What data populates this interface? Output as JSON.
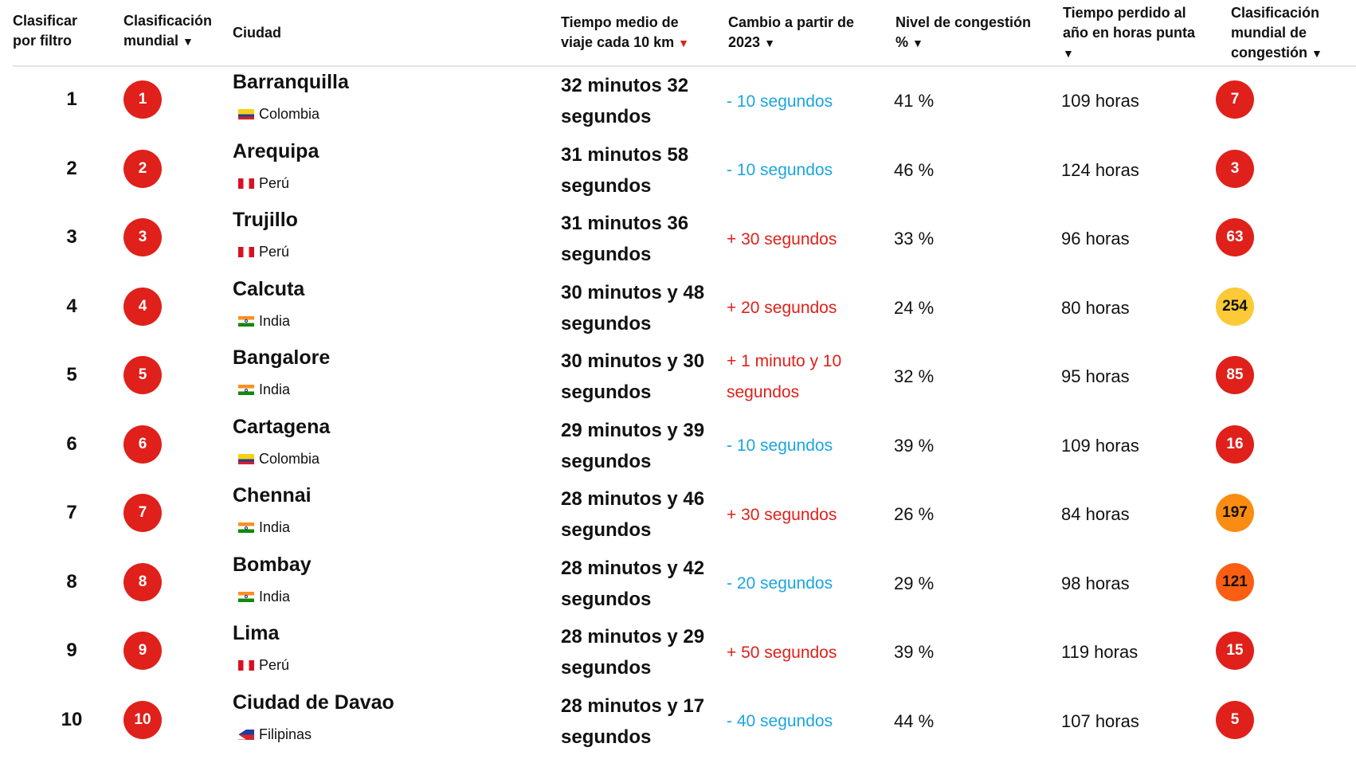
{
  "header": {
    "rank_filter": [
      "Clasificar",
      "por filtro"
    ],
    "world_rank": [
      "Clasificación",
      "mundial"
    ],
    "city": "Ciudad",
    "travel_time": [
      "Tiempo medio de",
      "viaje cada 10 km"
    ],
    "change": [
      "Cambio a partir de",
      "2023"
    ],
    "congestion_level": [
      "Nivel de congestión",
      "%"
    ],
    "time_lost": [
      "Tiempo perdido al",
      "año en horas punta"
    ],
    "congestion_rank": [
      "Clasificación",
      "mundial de",
      "congestión"
    ],
    "sort_arrow": "▼"
  },
  "rows": [
    {
      "rank": "1",
      "world_rank": "1",
      "city": "Barranquilla",
      "country": "Colombia",
      "flag": "colombia",
      "travel_time": "32 minutos 32 segundos",
      "change": "- 10 segundos",
      "trend": "neg",
      "congestion": "41 %",
      "hours": "109 horas",
      "congestion_rank": "7",
      "badge_color": "#e0201a",
      "badge_text_color": "#ffffff"
    },
    {
      "rank": "2",
      "world_rank": "2",
      "city": "Arequipa",
      "country": "Perú",
      "flag": "peru",
      "travel_time": "31 minutos 58 segundos",
      "change": "- 10 segundos",
      "trend": "neg",
      "congestion": "46 %",
      "hours": "124 horas",
      "congestion_rank": "3",
      "badge_color": "#e0201a",
      "badge_text_color": "#ffffff"
    },
    {
      "rank": "3",
      "world_rank": "3",
      "city": "Trujillo",
      "country": "Perú",
      "flag": "peru",
      "travel_time": "31 minutos 36 segundos",
      "change": "+ 30 segundos",
      "trend": "pos",
      "congestion": "33 %",
      "hours": "96 horas",
      "congestion_rank": "63",
      "badge_color": "#e0201a",
      "badge_text_color": "#ffffff"
    },
    {
      "rank": "4",
      "world_rank": "4",
      "city": "Calcuta",
      "country": "India",
      "flag": "india",
      "travel_time": "30 minutos y 48 segundos",
      "change": "+ 20 segundos",
      "trend": "pos",
      "congestion": "24 %",
      "hours": "80 horas",
      "congestion_rank": "254",
      "badge_color": "#fcc937",
      "badge_text_color": "#111111"
    },
    {
      "rank": "5",
      "world_rank": "5",
      "city": "Bangalore",
      "country": "India",
      "flag": "india",
      "travel_time": "30 minutos y 30 segundos",
      "change": "+ 1 minuto y 10 segundos",
      "trend": "pos",
      "congestion": "32 %",
      "hours": "95 horas",
      "congestion_rank": "85",
      "badge_color": "#e0201a",
      "badge_text_color": "#ffffff"
    },
    {
      "rank": "6",
      "world_rank": "6",
      "city": "Cartagena",
      "country": "Colombia",
      "flag": "colombia",
      "travel_time": "29 minutos y 39 segundos",
      "change": "- 10 segundos",
      "trend": "neg",
      "congestion": "39 %",
      "hours": "109 horas",
      "congestion_rank": "16",
      "badge_color": "#e0201a",
      "badge_text_color": "#ffffff"
    },
    {
      "rank": "7",
      "world_rank": "7",
      "city": "Chennai",
      "country": "India",
      "flag": "india",
      "travel_time": "28 minutos y 46 segundos",
      "change": "+ 30 segundos",
      "trend": "pos",
      "congestion": "26 %",
      "hours": "84 horas",
      "congestion_rank": "197",
      "badge_color": "#fb8c12",
      "badge_text_color": "#111111"
    },
    {
      "rank": "8",
      "world_rank": "8",
      "city": "Bombay",
      "country": "India",
      "flag": "india",
      "travel_time": "28 minutos y 42 segundos",
      "change": "- 20 segundos",
      "trend": "neg",
      "congestion": "29 %",
      "hours": "98 horas",
      "congestion_rank": "121",
      "badge_color": "#fa5e12",
      "badge_text_color": "#111111"
    },
    {
      "rank": "9",
      "world_rank": "9",
      "city": "Lima",
      "country": "Perú",
      "flag": "peru",
      "travel_time": "28 minutos y 29 segundos",
      "change": "+ 50 segundos",
      "trend": "pos",
      "congestion": "39 %",
      "hours": "119 horas",
      "congestion_rank": "15",
      "badge_color": "#e0201a",
      "badge_text_color": "#ffffff"
    },
    {
      "rank": "10",
      "world_rank": "10",
      "city": "Ciudad de Davao",
      "country": "Filipinas",
      "flag": "philippines",
      "travel_time": "28 minutos y 17 segundos",
      "change": "- 40 segundos",
      "trend": "neg",
      "congestion": "44 %",
      "hours": "107 horas",
      "congestion_rank": "5",
      "badge_color": "#e0201a",
      "badge_text_color": "#ffffff"
    }
  ]
}
